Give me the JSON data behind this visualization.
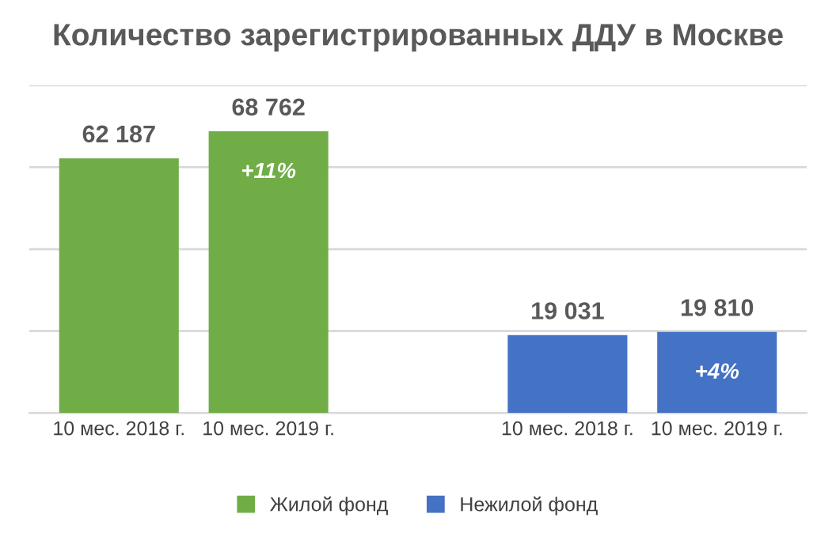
{
  "chart_data": {
    "type": "bar",
    "title": "Количество зарегистрированных ДДУ в Москве",
    "categories": [
      "10 мес. 2018 г.",
      "10 мес. 2019 г.",
      null,
      "10 мес. 2018 г.",
      "10 мес. 2019 г."
    ],
    "series": [
      {
        "name": "Жилой фонд",
        "color": "#70ad47",
        "values": [
          62187,
          68762,
          null,
          null,
          null
        ]
      },
      {
        "name": "Нежилой фонд",
        "color": "#4472c4",
        "values": [
          null,
          null,
          null,
          19031,
          19810
        ]
      }
    ],
    "grid": "y",
    "legend": "bottom",
    "data_labels": true,
    "annotations": [
      "+11%",
      "+4%"
    ]
  }
}
